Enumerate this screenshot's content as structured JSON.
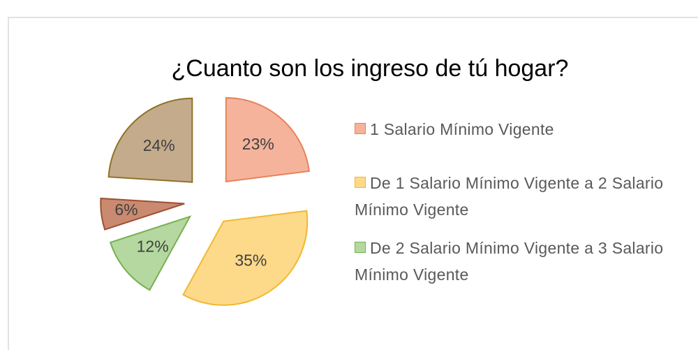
{
  "chart_data": {
    "type": "pie",
    "title": "¿Cuanto son los ingreso de tú hogar?",
    "categories": [
      "1 Salario Mínimo Vigente",
      "De 1 Salario Mínimo Vigente a 2 Salario Mínimo Vigente",
      "De 2 Salario Mínimo Vigente a 3 Salario Mínimo Vigente",
      null,
      null
    ],
    "values": [
      23,
      35,
      12,
      6,
      24
    ],
    "value_labels": [
      "23%",
      "35%",
      "12%",
      "6%",
      "24%"
    ],
    "colors": [
      "#f5b39b",
      "#fdd98a",
      "#b4d89f",
      "#c98a70",
      "#c4ab8c"
    ],
    "edge_colors": [
      "#e8825c",
      "#f2b830",
      "#78b050",
      "#9e4f33",
      "#8f7226"
    ],
    "exploded": true,
    "legend": "right"
  }
}
